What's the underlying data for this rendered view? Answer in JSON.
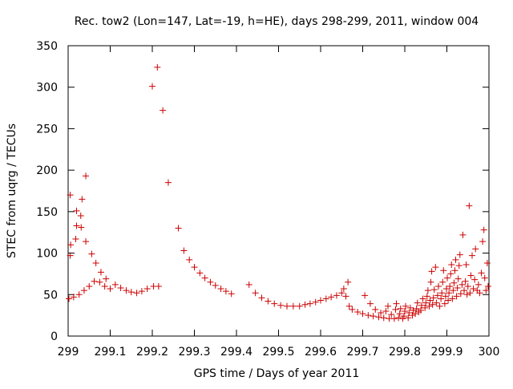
{
  "chart_data": {
    "type": "scatter",
    "title": "Rec. tow2 (Lon=147, Lat=-19, h=HE), days 298-299, 2011, window 004",
    "xlabel": "GPS time / Days of year 2011",
    "ylabel": "STEC from uqrg / TECUs",
    "xlim": [
      299,
      300
    ],
    "ylim": [
      0,
      350
    ],
    "xticks": [
      {
        "value": 299,
        "label": "299"
      },
      {
        "value": 299.1,
        "label": "299.1"
      },
      {
        "value": 299.2,
        "label": "299.2"
      },
      {
        "value": 299.3,
        "label": "299.3"
      },
      {
        "value": 299.4,
        "label": "299.4"
      },
      {
        "value": 299.5,
        "label": "299.5"
      },
      {
        "value": 299.6,
        "label": "299.6"
      },
      {
        "value": 299.7,
        "label": "299.7"
      },
      {
        "value": 299.8,
        "label": "299.8"
      },
      {
        "value": 299.9,
        "label": "299.9"
      },
      {
        "value": 300,
        "label": "300"
      }
    ],
    "yticks": [
      {
        "value": 0,
        "label": "0"
      },
      {
        "value": 50,
        "label": "50"
      },
      {
        "value": 100,
        "label": "100"
      },
      {
        "value": 150,
        "label": "150"
      },
      {
        "value": 200,
        "label": "200"
      },
      {
        "value": 250,
        "label": "250"
      },
      {
        "value": 300,
        "label": "300"
      },
      {
        "value": 350,
        "label": "350"
      }
    ],
    "grid": false,
    "marker": "+",
    "color": "#cc0000",
    "points": [
      [
        299.002,
        45
      ],
      [
        299.005,
        97
      ],
      [
        299.006,
        110
      ],
      [
        299.005,
        170
      ],
      [
        299.013,
        47
      ],
      [
        299.018,
        117
      ],
      [
        299.02,
        133
      ],
      [
        299.02,
        151
      ],
      [
        299.026,
        50
      ],
      [
        299.03,
        145
      ],
      [
        299.031,
        131
      ],
      [
        299.033,
        165
      ],
      [
        299.038,
        55
      ],
      [
        299.042,
        114
      ],
      [
        299.042,
        193
      ],
      [
        299.05,
        60
      ],
      [
        299.056,
        99
      ],
      [
        299.062,
        66
      ],
      [
        299.066,
        88
      ],
      [
        299.075,
        65
      ],
      [
        299.078,
        77
      ],
      [
        299.087,
        60
      ],
      [
        299.09,
        69
      ],
      [
        299.1,
        57
      ],
      [
        299.112,
        62
      ],
      [
        299.125,
        58
      ],
      [
        299.138,
        55
      ],
      [
        299.15,
        53
      ],
      [
        299.163,
        52
      ],
      [
        299.175,
        54
      ],
      [
        299.188,
        57
      ],
      [
        299.2,
        301
      ],
      [
        299.203,
        60
      ],
      [
        299.212,
        324
      ],
      [
        299.215,
        60
      ],
      [
        299.225,
        272
      ],
      [
        299.238,
        185
      ],
      [
        299.262,
        130
      ],
      [
        299.275,
        103
      ],
      [
        299.288,
        92
      ],
      [
        299.3,
        83
      ],
      [
        299.313,
        76
      ],
      [
        299.325,
        70
      ],
      [
        299.338,
        65
      ],
      [
        299.35,
        61
      ],
      [
        299.363,
        57
      ],
      [
        299.375,
        54
      ],
      [
        299.388,
        51
      ],
      [
        299.43,
        62
      ],
      [
        299.445,
        52
      ],
      [
        299.46,
        46
      ],
      [
        299.475,
        42
      ],
      [
        299.49,
        39
      ],
      [
        299.505,
        37
      ],
      [
        299.52,
        36
      ],
      [
        299.535,
        36
      ],
      [
        299.55,
        36
      ],
      [
        299.563,
        38
      ],
      [
        299.575,
        39
      ],
      [
        299.588,
        41
      ],
      [
        299.6,
        43
      ],
      [
        299.613,
        45
      ],
      [
        299.625,
        47
      ],
      [
        299.638,
        49
      ],
      [
        299.65,
        52
      ],
      [
        299.655,
        57
      ],
      [
        299.66,
        48
      ],
      [
        299.665,
        65
      ],
      [
        299.668,
        36
      ],
      [
        299.675,
        32
      ],
      [
        299.688,
        29
      ],
      [
        299.7,
        27
      ],
      [
        299.705,
        49
      ],
      [
        299.713,
        25
      ],
      [
        299.718,
        39
      ],
      [
        299.725,
        24
      ],
      [
        299.73,
        32
      ],
      [
        299.738,
        23
      ],
      [
        299.743,
        28
      ],
      [
        299.75,
        22
      ],
      [
        299.755,
        30
      ],
      [
        299.76,
        36
      ],
      [
        299.763,
        21
      ],
      [
        299.768,
        26
      ],
      [
        299.775,
        21
      ],
      [
        299.778,
        32
      ],
      [
        299.78,
        39
      ],
      [
        299.785,
        22
      ],
      [
        299.788,
        27
      ],
      [
        299.79,
        33
      ],
      [
        299.795,
        21
      ],
      [
        299.798,
        24
      ],
      [
        299.8,
        30
      ],
      [
        299.802,
        36
      ],
      [
        299.808,
        22
      ],
      [
        299.81,
        28
      ],
      [
        299.813,
        34
      ],
      [
        299.818,
        25
      ],
      [
        299.82,
        31
      ],
      [
        299.825,
        27
      ],
      [
        299.828,
        33
      ],
      [
        299.83,
        40
      ],
      [
        299.833,
        29
      ],
      [
        299.838,
        31
      ],
      [
        299.84,
        37
      ],
      [
        299.843,
        45
      ],
      [
        299.848,
        34
      ],
      [
        299.85,
        40
      ],
      [
        299.853,
        48
      ],
      [
        299.855,
        55
      ],
      [
        299.858,
        36
      ],
      [
        299.86,
        43
      ],
      [
        299.862,
        65
      ],
      [
        299.864,
        78
      ],
      [
        299.866,
        38
      ],
      [
        299.868,
        46
      ],
      [
        299.87,
        56
      ],
      [
        299.873,
        83
      ],
      [
        299.875,
        40
      ],
      [
        299.878,
        49
      ],
      [
        299.88,
        60
      ],
      [
        299.883,
        36
      ],
      [
        299.886,
        45
      ],
      [
        299.888,
        52
      ],
      [
        299.89,
        65
      ],
      [
        299.892,
        79
      ],
      [
        299.895,
        39
      ],
      [
        299.897,
        48
      ],
      [
        299.899,
        57
      ],
      [
        299.901,
        70
      ],
      [
        299.903,
        43
      ],
      [
        299.905,
        52
      ],
      [
        299.907,
        60
      ],
      [
        299.909,
        75
      ],
      [
        299.911,
        86
      ],
      [
        299.913,
        45
      ],
      [
        299.915,
        55
      ],
      [
        299.917,
        64
      ],
      [
        299.919,
        79
      ],
      [
        299.921,
        92
      ],
      [
        299.923,
        48
      ],
      [
        299.925,
        58
      ],
      [
        299.927,
        69
      ],
      [
        299.929,
        85
      ],
      [
        299.931,
        98
      ],
      [
        299.933,
        51
      ],
      [
        299.936,
        62
      ],
      [
        299.938,
        122
      ],
      [
        299.941,
        55
      ],
      [
        299.944,
        66
      ],
      [
        299.946,
        86
      ],
      [
        299.948,
        50
      ],
      [
        299.95,
        60
      ],
      [
        299.953,
        157
      ],
      [
        299.955,
        52
      ],
      [
        299.957,
        73
      ],
      [
        299.96,
        97
      ],
      [
        299.963,
        57
      ],
      [
        299.966,
        68
      ],
      [
        299.968,
        105
      ],
      [
        299.972,
        55
      ],
      [
        299.975,
        62
      ],
      [
        299.978,
        52
      ],
      [
        299.982,
        76
      ],
      [
        299.985,
        114
      ],
      [
        299.988,
        128
      ],
      [
        299.99,
        70
      ],
      [
        299.993,
        55
      ],
      [
        299.996,
        88
      ],
      [
        299.998,
        60
      ]
    ]
  }
}
